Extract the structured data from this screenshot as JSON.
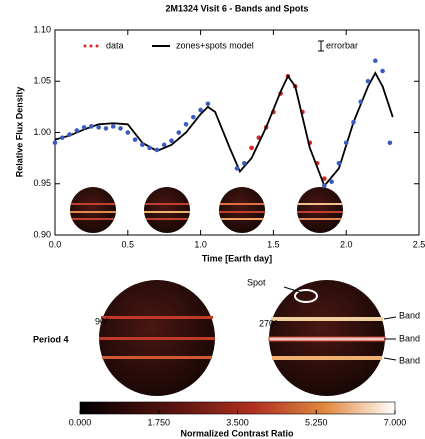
{
  "chart_data": {
    "type": "scatter",
    "title": "2M1324 Visit 6 - Bands and Spots",
    "xlabel": "Time [Earth day]",
    "ylabel": "Relative Flux Density",
    "xlim": [
      0,
      2.5
    ],
    "ylim": [
      0.9,
      1.1
    ],
    "xticks": [
      {
        "value": 0,
        "label": "0.0"
      },
      0.5,
      {
        "value": 1,
        "label": "1.0"
      },
      1.5,
      {
        "value": 2,
        "label": "2.0"
      },
      2.5
    ],
    "yticks": [
      {
        "value": 0.9,
        "label": "0.90"
      },
      0.95,
      {
        "value": 1,
        "label": "1.00"
      },
      1.05,
      {
        "value": 1.1,
        "label": "1.10"
      }
    ],
    "errorbar_label": "errorbar",
    "series": [
      {
        "name": "data",
        "color": "#d62728",
        "x": [
          1.35,
          1.4,
          1.45,
          1.5,
          1.55,
          1.6,
          1.65,
          1.7,
          1.75,
          1.8,
          1.85
        ],
        "values": [
          0.985,
          0.995,
          1.005,
          1.02,
          1.038,
          1.055,
          1.045,
          1.02,
          0.99,
          0.97,
          0.955
        ]
      },
      {
        "name": "zones+spots model",
        "color": "#000000",
        "line": true,
        "x": [
          0,
          0.1,
          0.2,
          0.3,
          0.4,
          0.5,
          0.6,
          0.7,
          0.8,
          0.9,
          1.0,
          1.05,
          1.1,
          1.2,
          1.27,
          1.35,
          1.45,
          1.55,
          1.6,
          1.65,
          1.75,
          1.85,
          1.95,
          2.05,
          2.15,
          2.2,
          2.25,
          2.32
        ],
        "values": [
          0.993,
          0.997,
          1.003,
          1.008,
          1.009,
          1.008,
          0.99,
          0.982,
          0.988,
          1.0,
          1.018,
          1.025,
          1.02,
          0.985,
          0.962,
          0.975,
          1.005,
          1.04,
          1.055,
          1.045,
          0.985,
          0.948,
          0.965,
          1.01,
          1.045,
          1.058,
          1.045,
          1.015
        ]
      },
      {
        "color": "#3b5bbf",
        "x": [
          0,
          0.05,
          0.1,
          0.15,
          0.2,
          0.25,
          0.3,
          0.35,
          0.4,
          0.45,
          0.5,
          0.55,
          0.6,
          0.65,
          0.7,
          0.75,
          0.8,
          0.85,
          0.9,
          0.95,
          1.0,
          1.05,
          1.25,
          1.3,
          1.85,
          1.9,
          1.95,
          2.0,
          2.05,
          2.1,
          2.15,
          2.2,
          2.25,
          2.3
        ],
        "values": [
          0.99,
          0.995,
          0.998,
          1.002,
          1.005,
          1.006,
          1.005,
          1.004,
          1.006,
          1.004,
          1.0,
          0.993,
          0.988,
          0.985,
          0.983,
          0.988,
          0.992,
          1.0,
          1.008,
          1.015,
          1.022,
          1.028,
          0.965,
          0.97,
          0.948,
          0.952,
          0.97,
          0.99,
          1.01,
          1.03,
          1.05,
          1.07,
          1.06,
          0.99
        ]
      }
    ]
  },
  "figure": {
    "period": "Period 4",
    "angle_left": "90°",
    "angle_right": "270°",
    "spot": "Spot",
    "bands": [
      "Band",
      "Band",
      "Band"
    ]
  },
  "colorbar": {
    "label": "Normalized Contrast Ratio",
    "lim": [
      0,
      7
    ],
    "ticks": [
      {
        "value": 0,
        "label": "0.000"
      },
      {
        "value": 1.75,
        "label": "1.750"
      },
      {
        "value": 3.5,
        "label": "3.500"
      },
      {
        "value": 5.25,
        "label": "5.250"
      },
      {
        "value": 7,
        "label": "7.000"
      }
    ]
  }
}
